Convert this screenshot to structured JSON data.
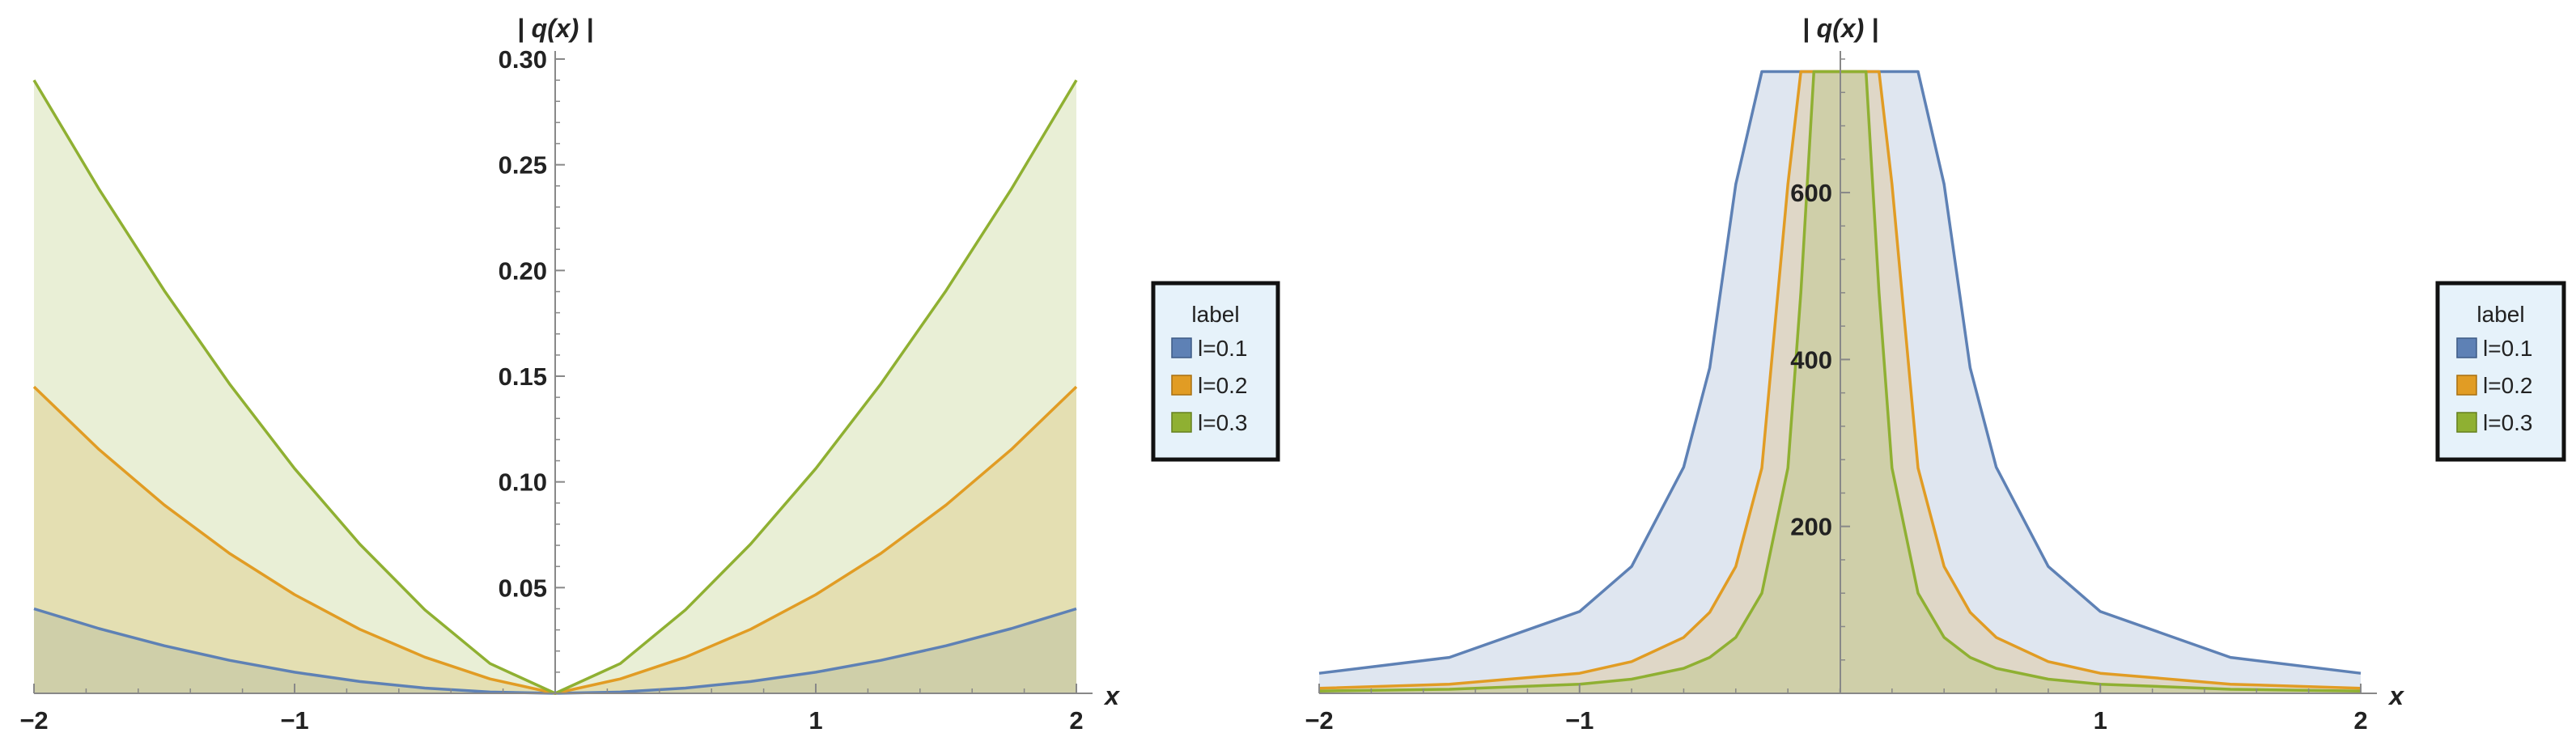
{
  "charts": [
    {
      "legend": {
        "title": "label",
        "items": [
          "l=0.1",
          "l=0.2",
          "l=0.3"
        ]
      }
    },
    {
      "legend": {
        "title": "label",
        "items": [
          "l=0.1",
          "l=0.2",
          "l=0.3"
        ]
      }
    }
  ],
  "chart_data": [
    {
      "type": "area",
      "title": "",
      "xlabel": "x",
      "ylabel": "| q(x) |",
      "xlim": [
        -2,
        2
      ],
      "ylim": [
        0,
        0.3
      ],
      "xticks": [
        -2,
        -1,
        1,
        2
      ],
      "xtick_labels": [
        "−2",
        "−1",
        "1",
        "2"
      ],
      "yticks": [
        0.05,
        0.1,
        0.15,
        0.2,
        0.25,
        0.3
      ],
      "ytick_labels": [
        "0.05",
        "0.10",
        "0.15",
        "0.20",
        "0.25",
        "0.30"
      ],
      "grid": false,
      "legend_position": "right",
      "filling": "to-axis",
      "x": [
        -2,
        -1.75,
        -1.5,
        -1.25,
        -1,
        -0.75,
        -0.5,
        -0.25,
        0,
        0.25,
        0.5,
        0.75,
        1,
        1.25,
        1.5,
        1.75,
        2
      ],
      "series": [
        {
          "name": "l=0.1",
          "color": "#5E81B5",
          "values": [
            0.04,
            0.0306,
            0.0225,
            0.0156,
            0.01,
            0.0056,
            0.0025,
            0.0006,
            0,
            0.0006,
            0.0025,
            0.0056,
            0.01,
            0.0156,
            0.0225,
            0.0306,
            0.04
          ]
        },
        {
          "name": "l=0.2",
          "color": "#E19C24",
          "values": [
            0.145,
            0.1153,
            0.0891,
            0.0662,
            0.0467,
            0.0303,
            0.0171,
            0.0068,
            0,
            0.0068,
            0.0171,
            0.0303,
            0.0467,
            0.0662,
            0.0891,
            0.1153,
            0.145
          ]
        },
        {
          "name": "l=0.3",
          "color": "#8FB032",
          "values": [
            0.29,
            0.2384,
            0.1905,
            0.1464,
            0.1063,
            0.0706,
            0.0395,
            0.0141,
            0,
            0.0141,
            0.0395,
            0.0706,
            0.1063,
            0.1464,
            0.1905,
            0.2384,
            0.29
          ]
        }
      ]
    },
    {
      "type": "area",
      "title": "",
      "xlabel": "x",
      "ylabel": "| q(x) |",
      "xlim": [
        -2,
        2
      ],
      "ylim": [
        0,
        760
      ],
      "clipped_at": 745,
      "xticks": [
        -2,
        -1,
        1,
        2
      ],
      "xtick_labels": [
        "−2",
        "−1",
        "1",
        "2"
      ],
      "yticks": [
        200,
        400,
        600
      ],
      "ytick_labels": [
        "200",
        "400",
        "600"
      ],
      "grid": false,
      "legend_position": "right",
      "filling": "to-axis",
      "x": [
        -2,
        -1.5,
        -1,
        -0.8,
        -0.6,
        -0.5,
        -0.4,
        -0.3,
        -0.2,
        -0.15,
        -0.1,
        -0.05,
        0.05,
        0.1,
        0.15,
        0.2,
        0.3,
        0.4,
        0.5,
        0.6,
        0.8,
        1,
        1.5,
        2
      ],
      "series": [
        {
          "name": "l=0.1",
          "color": "#5E81B5",
          "values": [
            24,
            43,
            98,
            152,
            271,
            390,
            610,
            745,
            745,
            745,
            745,
            745,
            745,
            745,
            745,
            745,
            745,
            610,
            390,
            271,
            152,
            98,
            43,
            24
          ]
        },
        {
          "name": "l=0.2",
          "color": "#E19C24",
          "values": [
            6,
            11,
            24,
            38,
            67,
            97,
            152,
            270,
            610,
            745,
            745,
            745,
            745,
            745,
            745,
            610,
            270,
            152,
            97,
            67,
            38,
            24,
            11,
            6
          ]
        },
        {
          "name": "l=0.3",
          "color": "#8FB032",
          "values": [
            2.7,
            4.8,
            11,
            17,
            30,
            43,
            67,
            120,
            270,
            480,
            745,
            745,
            745,
            745,
            480,
            270,
            120,
            67,
            43,
            30,
            17,
            11,
            4.8,
            2.7
          ]
        }
      ]
    }
  ]
}
